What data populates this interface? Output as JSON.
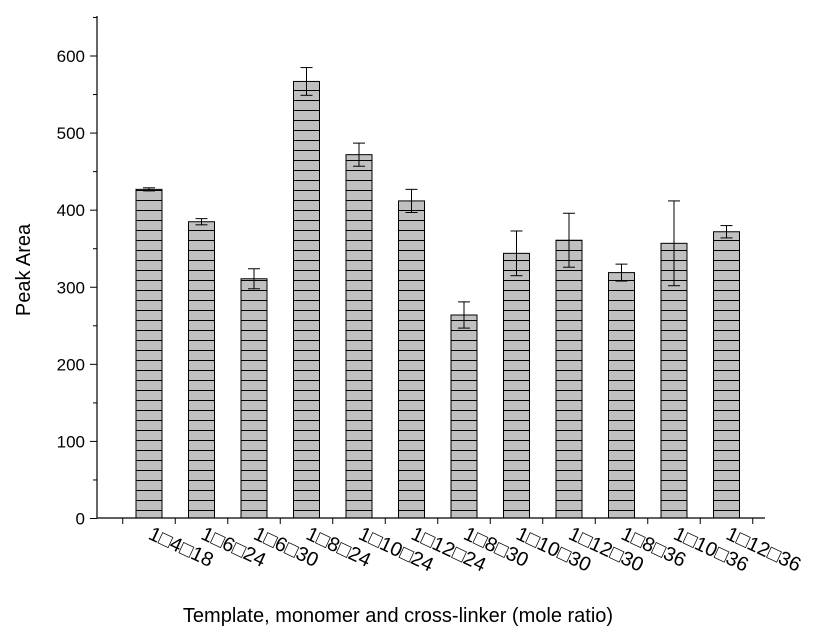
{
  "chart_data": {
    "type": "bar",
    "title": "",
    "xlabel": "Template, monomer and cross-linker (mole ratio)",
    "ylabel": "Peak Area",
    "ylim": [
      0,
      650
    ],
    "yticks": [
      0,
      100,
      200,
      300,
      400,
      500,
      600
    ],
    "grid": false,
    "bar_fill": "#c0c0c0",
    "bar_pattern": "horizontal-lines",
    "categories": [
      "1□4□18",
      "1□6□24",
      "1□6□30",
      "1□8□24",
      "1□10□24",
      "1□12□24",
      "1□8□30",
      "1□10□30",
      "1□12□30",
      "1□8□36",
      "1□10□36",
      "1□12□36"
    ],
    "values": [
      427,
      385,
      311,
      567,
      472,
      412,
      264,
      344,
      361,
      319,
      357,
      372
    ],
    "error": [
      2,
      4,
      13,
      18,
      15,
      15,
      17,
      29,
      35,
      11,
      55,
      8
    ]
  }
}
